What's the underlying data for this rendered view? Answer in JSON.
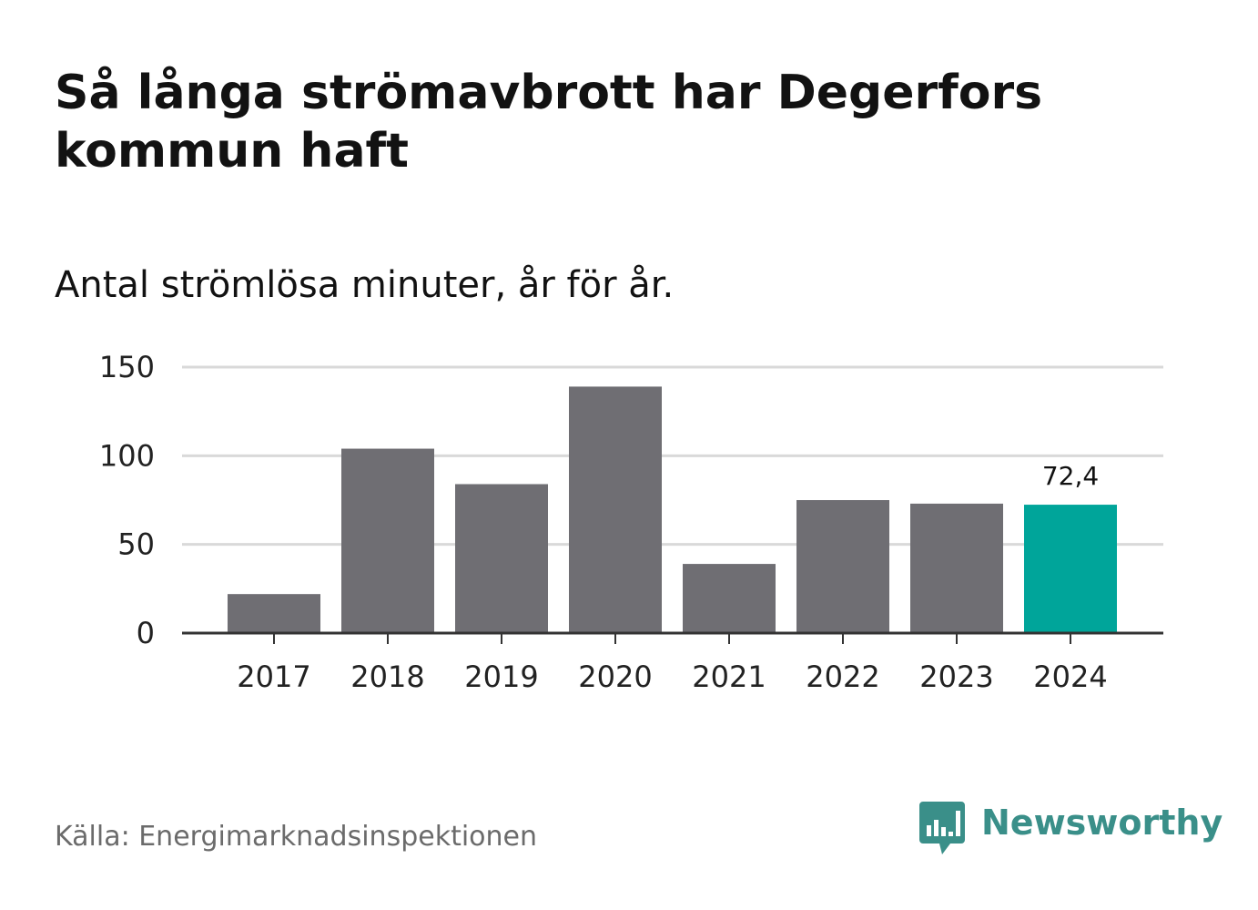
{
  "title": "Så långa strömavbrott har Degerfors kommun haft",
  "subtitle": "Antal strömlösa minuter, år för år.",
  "source": "Källa: Energimarknadsinspektionen",
  "brand": {
    "name": "Newsworthy",
    "icon": "bar-chart-speech-bubble-icon",
    "color": "#3a8f89"
  },
  "colors": {
    "bar": "#6f6e73",
    "highlight": "#00a59a",
    "grid": "#d9d9d9",
    "axis": "#333333"
  },
  "chart_data": {
    "type": "bar",
    "title": "Så långa strömavbrott har Degerfors kommun haft",
    "subtitle": "Antal strömlösa minuter, år för år.",
    "xlabel": "",
    "ylabel": "",
    "categories": [
      "2017",
      "2018",
      "2019",
      "2020",
      "2021",
      "2022",
      "2023",
      "2024"
    ],
    "values": [
      22,
      104,
      84,
      139,
      39,
      75,
      73,
      72.4
    ],
    "highlight_index": 7,
    "data_labels": [
      {
        "index": 7,
        "text": "72,4"
      }
    ],
    "ylim": [
      0,
      150
    ],
    "yticks": [
      "0",
      "50",
      "100",
      "150"
    ],
    "grid": true
  }
}
